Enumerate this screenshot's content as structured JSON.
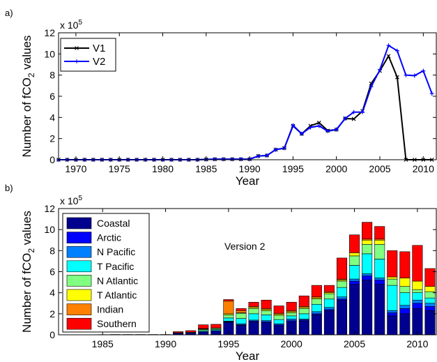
{
  "chart_data": [
    {
      "panel_label": "a)",
      "type": "line",
      "xlabel": "Year",
      "ylabel_prefix": "Number of fCO",
      "ylabel_subscript": "2",
      "ylabel_suffix": " values",
      "y_multiplier_base": "x 10",
      "y_multiplier_exponent": "5",
      "xlim": [
        1968,
        2011.5
      ],
      "ylim": [
        0,
        12
      ],
      "x_ticks": [
        1970,
        1975,
        1980,
        1985,
        1990,
        1995,
        2000,
        2005,
        2010
      ],
      "y_ticks": [
        0,
        2,
        4,
        6,
        8,
        10,
        12
      ],
      "legend_position": "top-left",
      "series": [
        {
          "name": "V1",
          "color": "#000000",
          "marker": "x",
          "x": [
            1968,
            1969,
            1970,
            1971,
            1972,
            1973,
            1974,
            1975,
            1976,
            1977,
            1978,
            1979,
            1980,
            1981,
            1982,
            1983,
            1984,
            1985,
            1986,
            1987,
            1988,
            1989,
            1990,
            1991,
            1992,
            1993,
            1994,
            1995,
            1996,
            1997,
            1998,
            1999,
            2000,
            2001,
            2002,
            2003,
            2004,
            2005,
            2006,
            2007,
            2008,
            2009,
            2010,
            2011
          ],
          "values": [
            0,
            0,
            0,
            0,
            0,
            0,
            0,
            0,
            0,
            0,
            0,
            0,
            0,
            0,
            0,
            0,
            0,
            0.03,
            0.05,
            0.05,
            0.05,
            0.05,
            0.05,
            0.35,
            0.4,
            0.95,
            1.1,
            3.2,
            2.45,
            3.2,
            3.5,
            2.75,
            2.85,
            3.9,
            3.85,
            4.6,
            7.2,
            8.4,
            9.8,
            7.8,
            0,
            0,
            0,
            0
          ]
        },
        {
          "name": "V2",
          "color": "#0000ff",
          "marker": "+",
          "x": [
            1968,
            1969,
            1970,
            1971,
            1972,
            1973,
            1974,
            1975,
            1976,
            1977,
            1978,
            1979,
            1980,
            1981,
            1982,
            1983,
            1984,
            1985,
            1986,
            1987,
            1988,
            1989,
            1990,
            1991,
            1992,
            1993,
            1994,
            1995,
            1996,
            1997,
            1998,
            1999,
            2000,
            2001,
            2002,
            2003,
            2004,
            2005,
            2006,
            2007,
            2008,
            2009,
            2010,
            2011
          ],
          "values": [
            0,
            0,
            0,
            0,
            0,
            0,
            0,
            0,
            0,
            0,
            0,
            0,
            0,
            0,
            0,
            0,
            0,
            0.03,
            0.05,
            0.05,
            0.05,
            0.05,
            0.05,
            0.35,
            0.4,
            0.95,
            1.1,
            3.25,
            2.45,
            3.05,
            3.2,
            2.7,
            2.85,
            3.9,
            4.5,
            4.5,
            6.9,
            8.5,
            10.8,
            10.3,
            8.0,
            7.95,
            8.4,
            6.25
          ]
        }
      ]
    },
    {
      "panel_label": "b)",
      "type": "bar",
      "stacked": true,
      "annotation": "Version 2",
      "xlabel": "Year",
      "ylabel_prefix": "Number of fCO",
      "ylabel_subscript": "2",
      "ylabel_suffix": " values",
      "y_multiplier_base": "x 10",
      "y_multiplier_exponent": "5",
      "xlim": [
        1981.5,
        2011.5
      ],
      "ylim": [
        0,
        12
      ],
      "x_ticks": [
        1985,
        1990,
        1995,
        2000,
        2005,
        2010
      ],
      "y_ticks": [
        0,
        2,
        4,
        6,
        8,
        10,
        12
      ],
      "legend_position": "top-left",
      "categories": [
        1982,
        1983,
        1984,
        1985,
        1986,
        1987,
        1988,
        1989,
        1990,
        1991,
        1992,
        1993,
        1994,
        1995,
        1996,
        1997,
        1998,
        1999,
        2000,
        2001,
        2002,
        2003,
        2004,
        2005,
        2006,
        2007,
        2008,
        2009,
        2010,
        2011
      ],
      "series": [
        {
          "name": "Coastal",
          "color": "#00008f",
          "values": [
            0,
            0,
            0.01,
            0.02,
            0.03,
            0.03,
            0.03,
            0.03,
            0.03,
            0.15,
            0.2,
            0.3,
            0.4,
            1.2,
            0.9,
            1.2,
            1.15,
            0.85,
            1.25,
            1.3,
            1.9,
            2.3,
            3.3,
            4.8,
            5.2,
            4.8,
            1.8,
            2.0,
            2.5,
            2.3
          ]
        },
        {
          "name": "Arctic",
          "color": "#0000ff",
          "values": [
            0,
            0,
            0,
            0,
            0,
            0,
            0,
            0,
            0,
            0,
            0,
            0,
            0,
            0.05,
            0.05,
            0.1,
            0.1,
            0.1,
            0.1,
            0.1,
            0.1,
            0.1,
            0.1,
            0.3,
            0.4,
            0.4,
            0.3,
            0.5,
            0.5,
            0.4
          ]
        },
        {
          "name": "N Pacific",
          "color": "#0080ff",
          "values": [
            0,
            0,
            0,
            0,
            0,
            0,
            0,
            0,
            0,
            0,
            0,
            0,
            0,
            0.05,
            0.1,
            0.1,
            0.1,
            0.1,
            0.15,
            0.1,
            0.2,
            0.2,
            0.2,
            0.2,
            0.2,
            0.2,
            0.2,
            0.3,
            0.3,
            0.3
          ]
        },
        {
          "name": "T Pacific",
          "color": "#00ffff",
          "values": [
            0,
            0,
            0,
            0,
            0,
            0,
            0,
            0,
            0,
            0,
            0,
            0.1,
            0.1,
            0.3,
            0.5,
            0.6,
            0.55,
            0.4,
            0.3,
            0.5,
            0.7,
            0.8,
            0.9,
            1.3,
            1.9,
            1.8,
            2.4,
            1.2,
            0.7,
            0.5
          ]
        },
        {
          "name": "N Atlantic",
          "color": "#80ff80",
          "values": [
            0,
            0,
            0,
            0,
            0,
            0,
            0,
            0,
            0,
            0.05,
            0.05,
            0.1,
            0.1,
            0.3,
            0.5,
            0.5,
            0.4,
            0.4,
            0.3,
            0.5,
            0.5,
            0.5,
            0.6,
            0.9,
            0.9,
            1.4,
            0.6,
            0.6,
            0.3,
            0.6
          ]
        },
        {
          "name": "T Atlantic",
          "color": "#ffff00",
          "values": [
            0,
            0,
            0,
            0,
            0,
            0,
            0,
            0,
            0,
            0,
            0,
            0.05,
            0.05,
            0.1,
            0.05,
            0.1,
            0.1,
            0.1,
            0.1,
            0.1,
            0.1,
            0.1,
            0.1,
            0.3,
            0.4,
            0.4,
            0.2,
            0.8,
            0.8,
            0.5
          ]
        },
        {
          "name": "Indian",
          "color": "#ff8000",
          "values": [
            0,
            0,
            0,
            0,
            0,
            0,
            0,
            0,
            0,
            0,
            0,
            0.05,
            0,
            1.2,
            0.2,
            0.1,
            0.1,
            0.1,
            0.1,
            0.1,
            0.1,
            0.1,
            0.1,
            0,
            0.1,
            0.1,
            0,
            0,
            0,
            0
          ]
        },
        {
          "name": "Southern",
          "color": "#ff0000",
          "values": [
            0,
            0,
            0,
            0,
            0,
            0,
            0,
            0,
            0,
            0.1,
            0.15,
            0.35,
            0.35,
            0.15,
            0.2,
            0.4,
            0.8,
            0.7,
            0.8,
            1.0,
            1.1,
            0.6,
            2.0,
            1.7,
            1.6,
            1.2,
            2.5,
            2.5,
            3.4,
            1.7
          ]
        }
      ]
    }
  ]
}
